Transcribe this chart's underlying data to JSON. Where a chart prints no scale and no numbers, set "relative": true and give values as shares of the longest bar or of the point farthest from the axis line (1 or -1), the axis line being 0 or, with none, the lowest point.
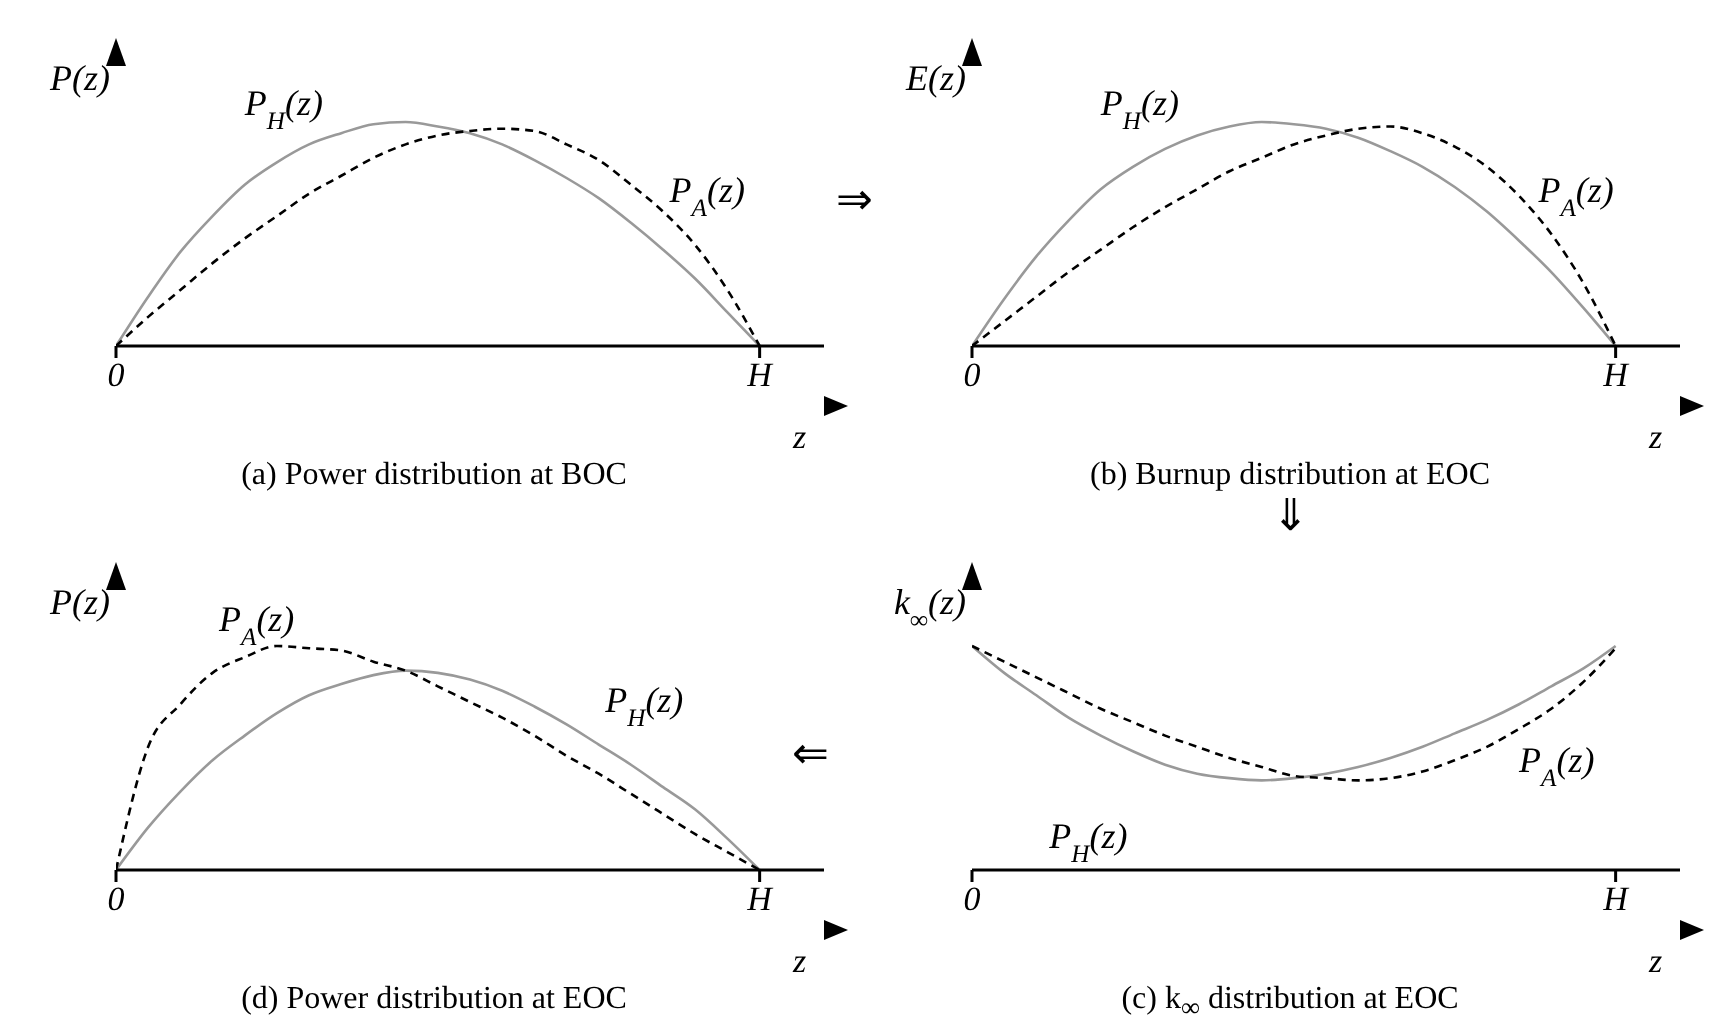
{
  "chart_data": [
    {
      "type": "line",
      "title": "(a) Power distribution at BOC",
      "xlabel": "z",
      "ylabel": "P(z)",
      "relative": true,
      "categories": [
        "0",
        null,
        null,
        null,
        null,
        null,
        null,
        null,
        null,
        null,
        null,
        null,
        null,
        null,
        null,
        null,
        null,
        null,
        null,
        null,
        "H",
        null,
        null
      ],
      "annotations": [
        "⇒"
      ],
      "series": [
        {
          "name": "P$_{H}$(z)",
          "color": "#999999",
          "values": [
            0,
            0.22,
            0.42,
            0.58,
            0.72,
            0.82,
            0.9,
            0.95,
            0.99,
            1,
            0.98,
            0.95,
            0.9,
            0.83,
            0.75,
            0.66,
            0.55,
            0.43,
            0.3,
            0.15,
            0,
            null,
            null
          ]
        },
        {
          "name": "P$_{A}$(z)",
          "color": "#000000",
          "line_style": "dashed",
          "values": [
            0,
            0.13,
            0.25,
            0.37,
            0.48,
            0.58,
            0.68,
            0.76,
            0.84,
            0.9,
            0.94,
            0.96,
            0.97,
            0.96,
            0.9,
            0.83,
            0.72,
            0.6,
            0.45,
            0.25,
            0,
            null,
            null
          ]
        }
      ]
    },
    {
      "type": "line",
      "title": "(b) Burnup distribution at EOC",
      "xlabel": "z",
      "ylabel": "E(z)",
      "relative": true,
      "categories": [
        "0",
        null,
        null,
        null,
        null,
        null,
        null,
        null,
        null,
        null,
        null,
        null,
        null,
        null,
        null,
        null,
        null,
        null,
        null,
        null,
        "H",
        null,
        null
      ],
      "annotations": [
        "⇓"
      ],
      "series": [
        {
          "name": "P$_{H}$(z)",
          "color": "#999999",
          "values": [
            0,
            0.21,
            0.4,
            0.56,
            0.7,
            0.8,
            0.88,
            0.94,
            0.98,
            1,
            0.99,
            0.97,
            0.93,
            0.87,
            0.8,
            0.71,
            0.6,
            0.47,
            0.33,
            0.17,
            0,
            null,
            null
          ]
        },
        {
          "name": "P$_{A}$(z)",
          "color": "#000000",
          "line_style": "dashed",
          "values": [
            0,
            0.11,
            0.22,
            0.33,
            0.43,
            0.53,
            0.62,
            0.7,
            0.78,
            0.84,
            0.9,
            0.94,
            0.97,
            0.98,
            0.95,
            0.89,
            0.8,
            0.67,
            0.5,
            0.28,
            0,
            null,
            null
          ]
        }
      ]
    },
    {
      "type": "line",
      "title": "(d) Power distribution at EOC",
      "xlabel": "z",
      "ylabel": "P(z)",
      "relative": true,
      "categories": [
        "0",
        null,
        null,
        null,
        null,
        null,
        null,
        null,
        null,
        null,
        null,
        null,
        null,
        null,
        null,
        null,
        null,
        null,
        null,
        null,
        "H",
        null,
        null
      ],
      "series": [
        {
          "name": "P$_{H}$(z)",
          "color": "#999999",
          "values": [
            0,
            0.19,
            0.35,
            0.49,
            0.6,
            0.7,
            0.78,
            0.83,
            0.87,
            0.89,
            0.88,
            0.85,
            0.8,
            0.73,
            0.65,
            0.56,
            0.47,
            0.37,
            0.27,
            0.14,
            0,
            null,
            null
          ]
        },
        {
          "name": "P$_{A}$(z)",
          "color": "#000000",
          "line_style": "dashed",
          "values": [
            0,
            0.55,
            0.74,
            0.88,
            0.95,
            1,
            0.99,
            0.98,
            0.93,
            0.89,
            0.82,
            0.75,
            0.68,
            0.6,
            0.51,
            0.43,
            0.34,
            0.25,
            0.16,
            0.08,
            0,
            null,
            null
          ]
        }
      ]
    },
    {
      "type": "line",
      "title": "(c) k$_{∞}$ distribution at EOC",
      "xlabel": "z",
      "ylabel": "k$_{∞}$(z)",
      "relative": true,
      "categories": [
        "0",
        null,
        null,
        null,
        null,
        null,
        null,
        null,
        null,
        null,
        null,
        null,
        null,
        null,
        null,
        null,
        null,
        null,
        null,
        null,
        "H",
        null,
        null
      ],
      "annotations": [
        "⇐"
      ],
      "series": [
        {
          "name": "P$_{H}$(z)",
          "color": "#999999",
          "values": [
            1,
            0.88,
            0.78,
            0.68,
            0.6,
            0.53,
            0.47,
            0.43,
            0.41,
            0.4,
            0.41,
            0.43,
            0.46,
            0.5,
            0.55,
            0.61,
            0.67,
            0.74,
            0.82,
            0.9,
            1,
            null,
            null
          ]
        },
        {
          "name": "P$_{A}$(z)",
          "color": "#000000",
          "line_style": "dashed",
          "values": [
            1,
            0.93,
            0.86,
            0.79,
            0.72,
            0.66,
            0.6,
            0.55,
            0.5,
            0.46,
            0.42,
            0.41,
            0.4,
            0.41,
            0.44,
            0.49,
            0.55,
            0.63,
            0.72,
            0.84,
            0.99,
            null,
            null
          ]
        }
      ]
    }
  ]
}
